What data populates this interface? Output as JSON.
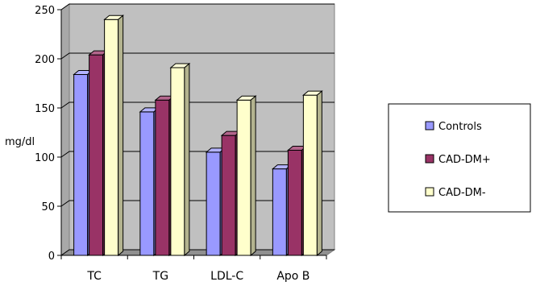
{
  "chart_data": {
    "type": "bar",
    "style": "3d-clustered-column",
    "categories": [
      "TC",
      "TG",
      "LDL-C",
      "Apo B"
    ],
    "series": [
      {
        "name": "Controls",
        "values": [
          184,
          146,
          105,
          88
        ],
        "color": "#9999ff"
      },
      {
        "name": "CAD-DM+",
        "values": [
          204,
          158,
          122,
          107
        ],
        "color": "#993366"
      },
      {
        "name": "CAD-DM-",
        "values": [
          240,
          191,
          158,
          163
        ],
        "color": "#ffffcc"
      }
    ],
    "title": "",
    "xlabel": "",
    "ylabel": "mg/dl",
    "ylim": [
      0,
      250
    ],
    "yticks": [
      0,
      50,
      100,
      150,
      200,
      250
    ],
    "grid": true,
    "wall_color": "#c0c0c0",
    "legend_position": "right"
  }
}
